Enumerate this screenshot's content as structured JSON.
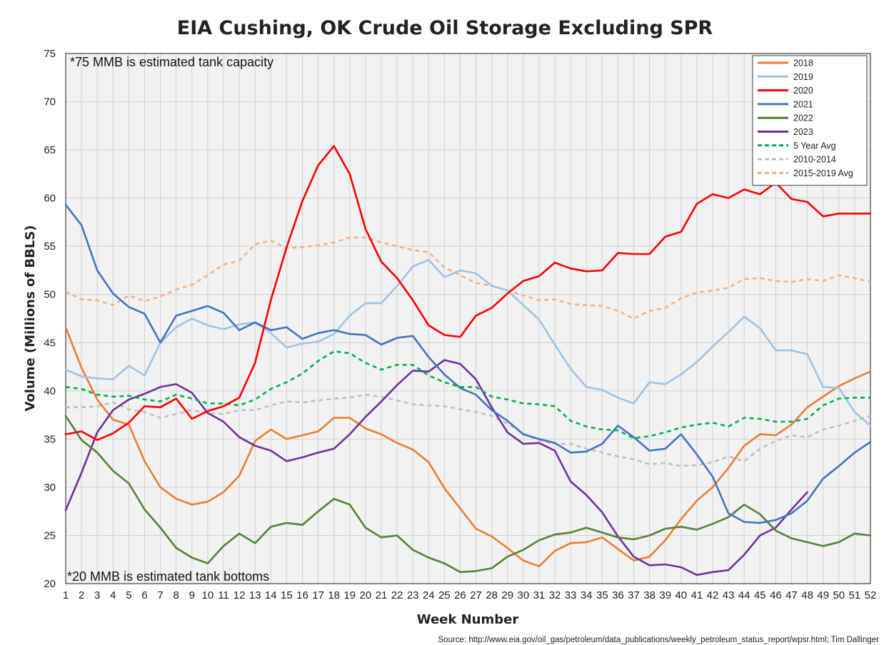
{
  "chart_data": {
    "type": "line",
    "title": "EIA Cushing, OK Crude Oil Storage Excluding SPR",
    "xlabel": "Week Number",
    "ylabel": "Volume (Millions of BBLS)",
    "xlim": [
      1,
      52
    ],
    "ylim": [
      20,
      75
    ],
    "y_ticks": [
      20,
      25,
      30,
      35,
      40,
      45,
      50,
      55,
      60,
      65,
      70,
      75
    ],
    "x_ticks": [
      1,
      2,
      3,
      4,
      5,
      6,
      7,
      8,
      9,
      10,
      11,
      12,
      13,
      14,
      15,
      16,
      17,
      18,
      19,
      20,
      21,
      22,
      23,
      24,
      25,
      26,
      27,
      28,
      29,
      30,
      31,
      32,
      33,
      34,
      35,
      36,
      37,
      38,
      39,
      40,
      41,
      42,
      43,
      44,
      45,
      46,
      47,
      48,
      49,
      50,
      51,
      52
    ],
    "grid": true,
    "legend_position": "top-right",
    "annotations": {
      "top": "*75 MMB is estimated tank capacity",
      "bottom": "*20 MMB is estimated tank bottoms"
    },
    "source": "Source: http://www.eia.gov/oil_gas/petroleum/data_publications/weekly_petroleum_status_report/wpsr.html; Tim Dallinger",
    "series": [
      {
        "name": "2018",
        "color": "#ED7D31",
        "dash": false,
        "values": [
          46.6,
          42.4,
          39.1,
          37.0,
          36.5,
          32.7,
          30.0,
          28.8,
          28.2,
          28.5,
          29.5,
          31.2,
          34.8,
          36.0,
          35.0,
          35.4,
          35.8,
          37.2,
          37.2,
          36.1,
          35.5,
          34.6,
          33.9,
          32.6,
          29.9,
          27.8,
          25.7,
          24.9,
          23.7,
          22.4,
          21.8,
          23.4,
          24.2,
          24.3,
          24.8,
          23.6,
          22.4,
          22.8,
          24.5,
          26.7,
          28.6,
          30.0,
          32.0,
          34.3,
          35.5,
          35.4,
          36.5,
          38.3,
          39.4,
          40.5,
          41.3,
          42.0
        ]
      },
      {
        "name": "2019",
        "color": "#9DC3E6",
        "dash": false,
        "values": [
          42.2,
          41.5,
          41.3,
          41.2,
          42.6,
          41.6,
          45.0,
          46.6,
          47.5,
          46.8,
          46.4,
          46.9,
          47.1,
          46.0,
          44.5,
          44.9,
          45.1,
          45.9,
          47.8,
          49.1,
          49.1,
          50.9,
          52.9,
          53.6,
          51.8,
          52.5,
          52.2,
          50.9,
          50.4,
          48.9,
          47.4,
          44.8,
          42.3,
          40.4,
          40.1,
          39.3,
          38.7,
          40.9,
          40.7,
          41.7,
          43.0,
          44.6,
          46.1,
          47.7,
          46.5,
          44.2,
          44.2,
          43.8,
          40.4,
          40.3,
          37.8,
          36.4
        ]
      },
      {
        "name": "2020",
        "color": "#FF0000",
        "dash": false,
        "values": [
          35.5,
          35.8,
          34.9,
          35.6,
          36.7,
          38.4,
          38.3,
          39.2,
          37.1,
          37.9,
          38.4,
          39.3,
          42.9,
          49.4,
          54.9,
          59.7,
          63.4,
          65.4,
          62.5,
          56.8,
          53.4,
          51.7,
          49.4,
          46.8,
          45.8,
          45.6,
          47.8,
          48.6,
          50.1,
          51.4,
          51.9,
          53.3,
          52.7,
          52.4,
          52.5,
          54.3,
          54.2,
          54.2,
          56.0,
          56.5,
          59.4,
          60.4,
          60.0,
          60.9,
          60.4,
          61.6,
          59.9,
          59.6,
          58.1,
          58.4,
          58.4,
          58.4
        ]
      },
      {
        "name": "2021",
        "color": "#4472C4",
        "dash": false,
        "values": [
          59.3,
          57.2,
          52.5,
          50.1,
          48.7,
          48.0,
          45.0,
          47.8,
          48.3,
          48.8,
          48.1,
          46.3,
          47.1,
          46.3,
          46.6,
          45.4,
          46.0,
          46.3,
          45.9,
          45.8,
          44.8,
          45.5,
          45.7,
          43.5,
          41.7,
          40.3,
          39.6,
          38.0,
          36.9,
          35.5,
          35.0,
          34.6,
          33.6,
          33.7,
          34.5,
          36.4,
          35.2,
          33.8,
          34.0,
          35.5,
          33.4,
          31.1,
          27.3,
          26.4,
          26.3,
          26.6,
          27.3,
          28.6,
          30.9,
          32.2,
          33.6,
          34.7
        ]
      },
      {
        "name": "2022",
        "color": "#548235",
        "dash": false,
        "values": [
          37.4,
          34.9,
          33.6,
          31.7,
          30.4,
          27.7,
          25.8,
          23.7,
          22.7,
          22.1,
          23.9,
          25.2,
          24.2,
          25.9,
          26.3,
          26.1,
          27.5,
          28.8,
          28.2,
          25.8,
          24.8,
          25.0,
          23.5,
          22.7,
          22.1,
          21.2,
          21.3,
          21.6,
          22.8,
          23.5,
          24.5,
          25.1,
          25.3,
          25.8,
          25.3,
          24.8,
          24.6,
          25.0,
          25.7,
          25.9,
          25.6,
          26.2,
          26.9,
          28.2,
          27.2,
          25.5,
          24.7,
          24.3,
          23.9,
          24.3,
          25.2,
          25.0
        ]
      },
      {
        "name": "2023",
        "color": "#7030A0",
        "dash": false,
        "values": [
          27.6,
          31.5,
          35.7,
          38.0,
          39.1,
          39.7,
          40.4,
          40.7,
          39.8,
          37.7,
          36.8,
          35.2,
          34.3,
          33.8,
          32.7,
          33.1,
          33.6,
          34.0,
          35.5,
          37.3,
          38.9,
          40.6,
          42.1,
          42.0,
          43.2,
          42.8,
          41.2,
          38.3,
          35.7,
          34.5,
          34.6,
          33.8,
          30.6,
          29.2,
          27.4,
          24.9,
          22.8,
          21.9,
          22.0,
          21.7,
          20.9,
          21.2,
          21.4,
          23.0,
          25.0,
          25.8,
          27.7,
          29.5
        ]
      },
      {
        "name": "5 Year Avg",
        "color": "#00B050",
        "dash": true,
        "values": [
          40.4,
          40.2,
          39.6,
          39.4,
          39.5,
          39.1,
          38.9,
          39.6,
          39.2,
          38.7,
          38.7,
          38.5,
          39.1,
          40.2,
          40.9,
          41.8,
          43.1,
          44.1,
          43.9,
          42.9,
          42.2,
          42.7,
          42.7,
          41.6,
          40.9,
          40.4,
          40.4,
          39.4,
          39.1,
          38.7,
          38.6,
          38.4,
          36.9,
          36.3,
          36.0,
          35.9,
          35.1,
          35.3,
          35.7,
          36.2,
          36.5,
          36.7,
          36.3,
          37.2,
          37.1,
          36.8,
          36.8,
          37.1,
          38.5,
          39.2,
          39.3,
          39.3
        ]
      },
      {
        "name": "2010-2014",
        "color": "#BFBFBF",
        "dash": true,
        "values": [
          38.3,
          38.3,
          38.4,
          38.8,
          38.1,
          37.8,
          37.2,
          37.6,
          38.0,
          37.7,
          37.6,
          38.0,
          38.0,
          38.5,
          38.9,
          38.8,
          39.0,
          39.2,
          39.3,
          39.6,
          39.4,
          39.0,
          38.6,
          38.5,
          38.4,
          38.1,
          37.8,
          37.4,
          36.6,
          35.6,
          34.9,
          34.5,
          34.5,
          34.0,
          33.6,
          33.2,
          32.9,
          32.4,
          32.5,
          32.2,
          32.3,
          32.6,
          33.2,
          32.7,
          34.0,
          34.8,
          35.4,
          35.2,
          36.0,
          36.4,
          36.9,
          37.4
        ]
      },
      {
        "name": "2015-2019 Avg",
        "color": "#F4B183",
        "dash": true,
        "values": [
          50.3,
          49.5,
          49.4,
          48.9,
          49.9,
          49.3,
          49.8,
          50.5,
          51.0,
          52.0,
          53.1,
          53.5,
          55.2,
          55.6,
          54.8,
          54.9,
          55.1,
          55.4,
          55.9,
          55.9,
          55.4,
          55.0,
          54.6,
          54.4,
          52.8,
          52.0,
          51.2,
          50.9,
          50.4,
          49.9,
          49.4,
          49.5,
          49.0,
          48.9,
          48.8,
          48.3,
          47.5,
          48.3,
          48.6,
          49.6,
          50.2,
          50.4,
          50.7,
          51.6,
          51.7,
          51.4,
          51.3,
          51.6,
          51.4,
          52.0,
          51.7,
          51.3
        ]
      }
    ]
  }
}
